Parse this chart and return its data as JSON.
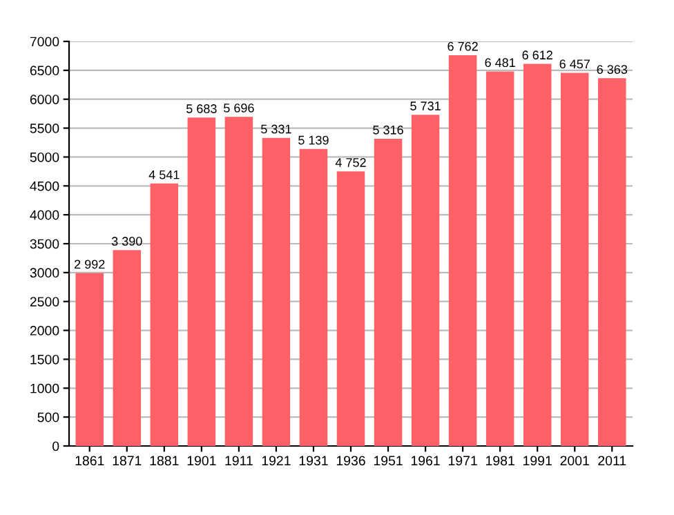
{
  "chart_data": {
    "type": "bar",
    "categories": [
      "1861",
      "1871",
      "1881",
      "1901",
      "1911",
      "1921",
      "1931",
      "1936",
      "1951",
      "1961",
      "1971",
      "1981",
      "1991",
      "2001",
      "2011"
    ],
    "values": [
      2992,
      3390,
      4541,
      5683,
      5696,
      5331,
      5139,
      4752,
      5316,
      5731,
      6762,
      6481,
      6612,
      6457,
      6363
    ],
    "value_labels": [
      "2 992",
      "3 390",
      "4 541",
      "5 683",
      "5 696",
      "5 331",
      "5 139",
      "4 752",
      "5 316",
      "5 731",
      "6 762",
      "6 481",
      "6 612",
      "6 457",
      "6 363"
    ],
    "color": "#ff6166",
    "ylim": [
      0,
      7000
    ],
    "yticks": [
      0,
      500,
      1000,
      1500,
      2000,
      2500,
      3000,
      3500,
      4000,
      4500,
      5000,
      5500,
      6000,
      6500,
      7000
    ],
    "grid": "y"
  }
}
